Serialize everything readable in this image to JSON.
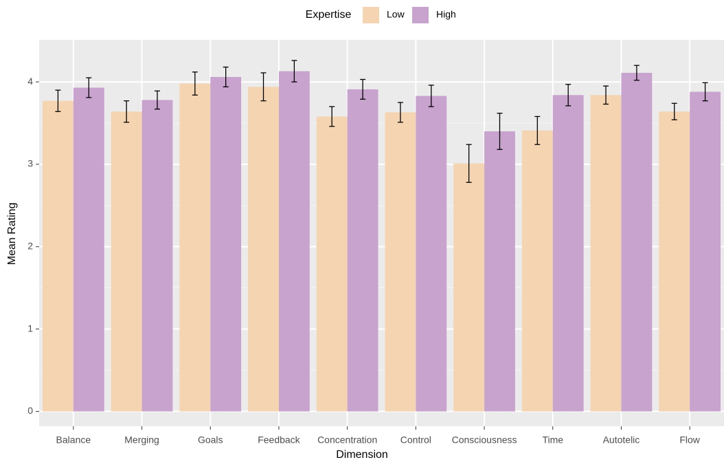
{
  "chart_data": {
    "type": "bar",
    "x_label": "Dimension",
    "y_label": "Mean Rating",
    "legend_title": "Expertise",
    "categories": [
      "Balance",
      "Merging",
      "Goals",
      "Feedback",
      "Concentration",
      "Control",
      "Consciousness",
      "Time",
      "Autotelic",
      "Flow"
    ],
    "series": [
      {
        "name": "Low",
        "color": "#f4d4b1",
        "values": [
          3.77,
          3.64,
          3.98,
          3.94,
          3.58,
          3.63,
          3.01,
          3.41,
          3.84,
          3.64
        ],
        "errors": [
          0.13,
          0.13,
          0.14,
          0.17,
          0.12,
          0.12,
          0.23,
          0.17,
          0.11,
          0.1
        ]
      },
      {
        "name": "High",
        "color": "#c7a3cd",
        "values": [
          3.93,
          3.78,
          4.06,
          4.13,
          3.91,
          3.83,
          3.4,
          3.84,
          4.11,
          3.88
        ],
        "errors": [
          0.12,
          0.11,
          0.12,
          0.13,
          0.12,
          0.13,
          0.22,
          0.13,
          0.09,
          0.11
        ]
      }
    ],
    "ylim": [
      -0.18,
      4.51
    ],
    "yticks": [
      0,
      1,
      2,
      3,
      4
    ],
    "grid": true,
    "legend_position": "top"
  }
}
